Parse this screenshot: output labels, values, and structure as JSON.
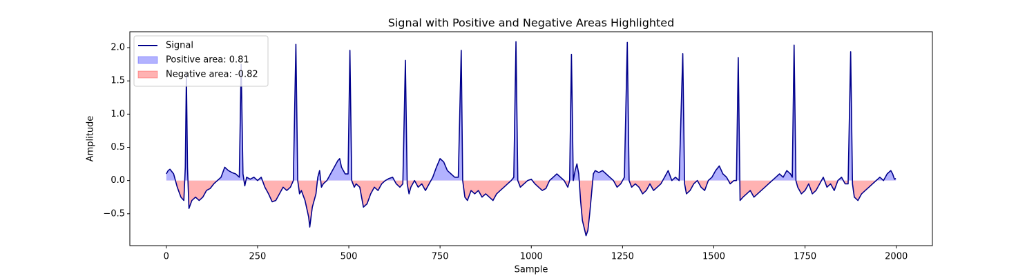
{
  "chart_data": {
    "type": "line",
    "title": "Signal with Positive and Negative Areas Highlighted",
    "xlabel": "Sample",
    "ylabel": "Amplitude",
    "x": [
      0,
      5,
      10,
      20,
      30,
      40,
      48,
      52,
      55,
      58,
      62,
      70,
      80,
      90,
      100,
      110,
      120,
      130,
      140,
      150,
      160,
      170,
      180,
      190,
      200,
      205,
      210,
      215,
      220,
      230,
      240,
      250,
      260,
      270,
      280,
      290,
      300,
      310,
      320,
      330,
      340,
      348,
      355,
      360,
      365,
      370,
      380,
      390,
      393,
      400,
      410,
      415,
      420,
      425,
      430,
      440,
      450,
      460,
      470,
      475,
      480,
      490,
      498,
      503,
      508,
      515,
      520,
      530,
      540,
      550,
      560,
      570,
      580,
      590,
      600,
      610,
      620,
      630,
      640,
      648,
      655,
      660,
      665,
      670,
      680,
      690,
      700,
      710,
      720,
      730,
      740,
      750,
      760,
      770,
      780,
      790,
      800,
      808,
      812,
      818,
      825,
      835,
      845,
      855,
      865,
      875,
      885,
      895,
      905,
      915,
      925,
      935,
      945,
      952,
      958,
      963,
      970,
      980,
      990,
      1000,
      1010,
      1020,
      1030,
      1040,
      1050,
      1060,
      1070,
      1080,
      1090,
      1100,
      1105,
      1110,
      1115,
      1120,
      1125,
      1130,
      1135,
      1140,
      1150,
      1155,
      1160,
      1165,
      1170,
      1175,
      1185,
      1195,
      1205,
      1215,
      1225,
      1235,
      1245,
      1255,
      1263,
      1268,
      1275,
      1285,
      1295,
      1305,
      1315,
      1325,
      1335,
      1345,
      1355,
      1365,
      1375,
      1385,
      1395,
      1405,
      1415,
      1420,
      1425,
      1435,
      1445,
      1455,
      1465,
      1475,
      1485,
      1495,
      1505,
      1515,
      1525,
      1535,
      1545,
      1555,
      1562,
      1567,
      1572,
      1580,
      1590,
      1600,
      1610,
      1620,
      1630,
      1640,
      1650,
      1660,
      1670,
      1680,
      1690,
      1700,
      1710,
      1715,
      1720,
      1725,
      1730,
      1740,
      1750,
      1760,
      1770,
      1780,
      1790,
      1800,
      1810,
      1820,
      1830,
      1840,
      1850,
      1860,
      1868,
      1875,
      1880,
      1885,
      1895,
      1905,
      1915,
      1925,
      1935,
      1945,
      1955,
      1965,
      1975,
      1985,
      1990,
      1995,
      1999
    ],
    "series": [
      {
        "name": "Signal",
        "color": "#00008b",
        "values": [
          0.1,
          0.15,
          0.17,
          0.1,
          -0.1,
          -0.25,
          -0.3,
          0.2,
          1.6,
          0.2,
          -0.42,
          -0.3,
          -0.25,
          -0.3,
          -0.25,
          -0.15,
          -0.12,
          -0.05,
          0.0,
          0.05,
          0.2,
          0.15,
          0.12,
          0.1,
          0.05,
          1.75,
          0.1,
          -0.08,
          0.05,
          0.02,
          0.05,
          0.0,
          0.05,
          -0.1,
          -0.2,
          -0.32,
          -0.3,
          -0.2,
          -0.1,
          -0.15,
          -0.1,
          0.0,
          2.05,
          0.0,
          -0.2,
          -0.15,
          -0.3,
          -0.55,
          -0.7,
          -0.4,
          -0.2,
          0.05,
          0.15,
          -0.1,
          -0.05,
          0.0,
          0.1,
          0.2,
          0.3,
          0.33,
          0.2,
          0.1,
          0.1,
          1.96,
          0.0,
          -0.1,
          -0.05,
          -0.1,
          -0.4,
          -0.35,
          -0.2,
          -0.1,
          -0.15,
          -0.05,
          0.0,
          0.03,
          0.05,
          -0.05,
          -0.1,
          -0.05,
          1.81,
          -0.05,
          -0.2,
          -0.1,
          0.0,
          -0.1,
          -0.05,
          -0.15,
          -0.05,
          0.05,
          0.2,
          0.33,
          0.28,
          0.15,
          0.1,
          0.05,
          0.05,
          1.96,
          0.0,
          -0.25,
          -0.3,
          -0.15,
          -0.2,
          -0.15,
          -0.25,
          -0.2,
          -0.25,
          -0.3,
          -0.2,
          -0.15,
          -0.1,
          -0.05,
          0.0,
          0.05,
          2.09,
          0.0,
          -0.1,
          -0.05,
          0.0,
          0.02,
          -0.05,
          -0.1,
          -0.15,
          -0.12,
          0.0,
          0.05,
          0.1,
          0.05,
          0.0,
          -0.1,
          0.0,
          1.9,
          0.0,
          0.15,
          0.25,
          0.1,
          -0.3,
          -0.6,
          -0.83,
          -0.75,
          -0.5,
          -0.2,
          0.1,
          0.15,
          0.12,
          0.15,
          0.1,
          0.05,
          0.0,
          -0.1,
          -0.05,
          0.05,
          2.08,
          0.0,
          -0.1,
          -0.05,
          -0.1,
          -0.2,
          -0.15,
          -0.05,
          -0.15,
          -0.1,
          -0.05,
          0.05,
          0.15,
          0.0,
          0.05,
          0.0,
          1.91,
          -0.05,
          -0.2,
          -0.15,
          -0.05,
          0.0,
          -0.1,
          -0.15,
          0.0,
          0.05,
          0.15,
          0.22,
          0.1,
          0.05,
          -0.05,
          0.0,
          0.0,
          1.85,
          -0.3,
          -0.25,
          -0.2,
          -0.15,
          -0.25,
          -0.2,
          -0.15,
          -0.1,
          -0.05,
          0.0,
          0.05,
          0.1,
          0.05,
          0.15,
          0.1,
          0.05,
          2.04,
          0.0,
          -0.1,
          -0.2,
          -0.15,
          -0.05,
          -0.2,
          -0.15,
          -0.05,
          0.05,
          -0.1,
          -0.05,
          -0.15,
          0.0,
          0.05,
          -0.05,
          -0.05,
          1.94,
          -0.05,
          -0.25,
          -0.3,
          -0.2,
          -0.15,
          -0.1,
          -0.05,
          0.0,
          0.05,
          0.0,
          0.1,
          0.15,
          0.1,
          0.02,
          0.03
        ]
      }
    ],
    "fills": [
      {
        "name": "Positive area: 0.81",
        "color": "#0000ff",
        "alpha": 0.3,
        "side": "above"
      },
      {
        "name": "Negative area: -0.82",
        "color": "#ff0000",
        "alpha": 0.3,
        "side": "below"
      }
    ],
    "legend": "upper left",
    "xlim": [
      -99.95,
      2098.95
    ],
    "xticks": [
      0,
      250,
      500,
      750,
      1000,
      1250,
      1500,
      1750,
      2000
    ],
    "ylim": [
      -0.98,
      2.24
    ],
    "yticks": [
      {
        "value": -0.5,
        "label": "−0.5"
      },
      {
        "value": 0.0,
        "label": "0.0"
      },
      0.5,
      {
        "value": 1.0,
        "label": "1.0"
      },
      1.5,
      {
        "value": 2.0,
        "label": "2.0"
      }
    ]
  }
}
